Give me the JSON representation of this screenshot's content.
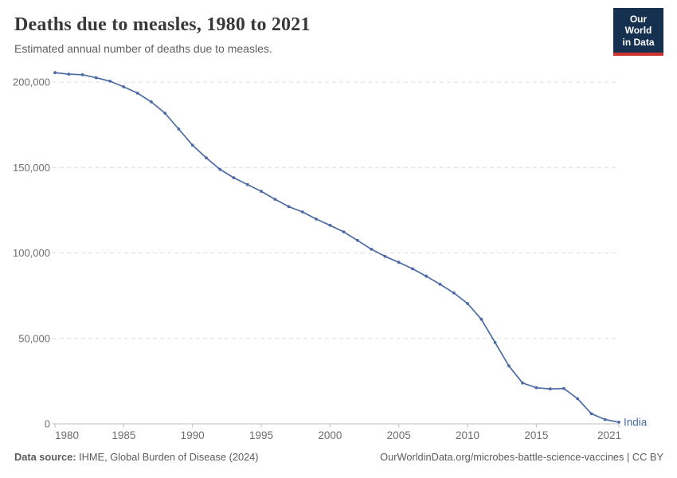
{
  "header": {
    "title": "Deaths due to measles, 1980 to 2021",
    "subtitle": "Estimated annual number of deaths due to measles.",
    "logo": {
      "line1": "Our World",
      "line2": "in Data"
    }
  },
  "chart_data": {
    "type": "line",
    "title": "Deaths due to measles, 1980 to 2021",
    "subtitle": "Estimated annual number of deaths due to measles.",
    "xlabel": "",
    "ylabel": "",
    "x": [
      1980,
      1981,
      1982,
      1983,
      1984,
      1985,
      1986,
      1987,
      1988,
      1989,
      1990,
      1991,
      1992,
      1993,
      1994,
      1995,
      1996,
      1997,
      1998,
      1999,
      2000,
      2001,
      2002,
      2003,
      2004,
      2005,
      2006,
      2007,
      2008,
      2009,
      2010,
      2011,
      2012,
      2013,
      2014,
      2015,
      2016,
      2017,
      2018,
      2019,
      2020,
      2021
    ],
    "series": [
      {
        "name": "India",
        "color": "#4c6aa4",
        "values": [
          205500,
          204600,
          204300,
          202500,
          200500,
          197200,
          193500,
          188400,
          181800,
          172500,
          163100,
          155600,
          148900,
          144000,
          140000,
          136100,
          131400,
          127100,
          124000,
          119800,
          116200,
          112300,
          107300,
          102200,
          98000,
          94500,
          90700,
          86400,
          81700,
          76600,
          70400,
          61200,
          47600,
          33900,
          23900,
          21100,
          20400,
          20700,
          14700,
          5900,
          2500,
          1000
        ]
      }
    ],
    "ylim": [
      0,
      215000
    ],
    "yticks": [
      0,
      50000,
      100000,
      150000,
      200000
    ],
    "ytick_labels": [
      "0",
      "50,000",
      "100,000",
      "150,000",
      "200,000"
    ],
    "xticks": [
      1980,
      1985,
      1990,
      1995,
      2000,
      2005,
      2010,
      2015,
      2021
    ],
    "grid": "horizontal-dashed",
    "legend_position": "end-of-line-label",
    "end_label": "India"
  },
  "footer": {
    "source_label": "Data source:",
    "source_text": " IHME, Global Burden of Disease (2024)",
    "link_text": "OurWorldinData.org/microbes-battle-science-vaccines | CC BY"
  },
  "colors": {
    "line": "#4c6aa4",
    "grid": "#dcdcdc",
    "axis": "#bdbdbd",
    "tick_label": "#6e6e6e",
    "title": "#383838",
    "subtitle": "#5f5f5f",
    "footer": "#5c5c5c",
    "logo_bg": "#16304f",
    "logo_accent": "#ce342b"
  }
}
